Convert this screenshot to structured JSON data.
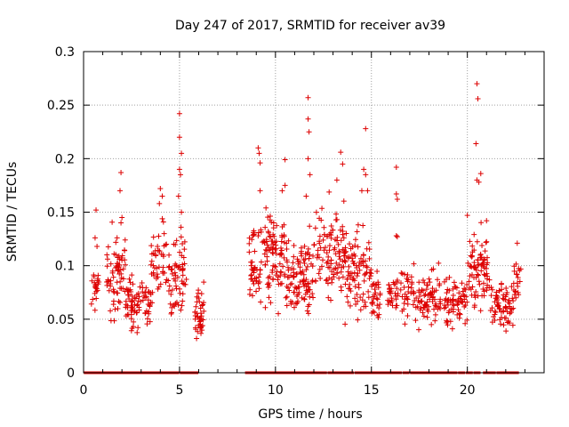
{
  "chart_data": {
    "type": "scatter",
    "title": "Day 247 of 2017, SRMTID for receiver av39",
    "xlabel": "GPS time / hours",
    "ylabel": "SRMTID / TECUs",
    "xlim": [
      0,
      24
    ],
    "ylim": [
      0,
      0.3
    ],
    "xticks": [
      0,
      5,
      10,
      15,
      20
    ],
    "xtick_labels": [
      "0",
      "5",
      "10",
      "15",
      "20"
    ],
    "yticks": [
      0,
      0.05,
      0.1,
      0.15,
      0.2,
      0.25,
      0.3
    ],
    "ytick_labels": [
      "0",
      "0.05",
      "0.1",
      "0.15",
      "0.2",
      "0.25",
      "0.3"
    ],
    "grid": true,
    "marker": "+",
    "series_color": "#dd0000",
    "grid_color": "#a0a0a0",
    "zero_x": [
      0.2,
      0.35,
      0.5,
      0.65,
      0.8,
      1.0,
      1.1,
      1.25,
      1.4,
      1.6,
      1.9,
      2.0,
      2.2,
      2.4,
      2.5,
      2.8,
      3.0,
      3.3,
      3.5,
      3.7,
      3.9,
      4.1,
      4.4,
      4.6,
      4.8,
      5.2,
      5.4,
      5.6,
      5.8,
      8.6,
      8.8,
      9.0,
      9.2,
      9.4,
      9.7,
      9.9,
      10.2,
      10.4,
      10.6,
      10.9,
      11.2,
      11.4,
      11.7,
      12.0,
      12.3,
      12.5,
      12.9,
      13.1,
      13.3,
      13.6,
      13.9,
      14.3,
      14.6,
      14.9,
      15.1,
      15.4,
      15.7,
      15.9,
      16.1,
      16.4,
      16.8,
      17.2,
      17.5,
      17.8,
      18.1,
      18.4,
      18.7,
      19.0,
      19.3,
      19.7,
      20.1,
      20.5,
      21.0,
      21.3,
      21.7,
      22.0,
      22.3,
      22.5
    ],
    "clusters": [
      {
        "x": [
          0.4,
          0.8
        ],
        "y": [
          0.055,
          0.11
        ],
        "n": 22
      },
      {
        "x": [
          1.2,
          2.2
        ],
        "y": [
          0.035,
          0.145
        ],
        "n": 70
      },
      {
        "x": [
          2.2,
          3.5
        ],
        "y": [
          0.03,
          0.1
        ],
        "n": 80
      },
      {
        "x": [
          3.5,
          4.5
        ],
        "y": [
          0.04,
          0.16
        ],
        "n": 50
      },
      {
        "x": [
          4.5,
          5.4
        ],
        "y": [
          0.035,
          0.15
        ],
        "n": 55
      },
      {
        "x": [
          5.8,
          6.3
        ],
        "y": [
          0.02,
          0.09
        ],
        "n": 40
      },
      {
        "x": [
          8.6,
          9.4
        ],
        "y": [
          0.05,
          0.16
        ],
        "n": 50
      },
      {
        "x": [
          9.4,
          10.5
        ],
        "y": [
          0.05,
          0.17
        ],
        "n": 90
      },
      {
        "x": [
          10.5,
          12.0
        ],
        "y": [
          0.03,
          0.14
        ],
        "n": 110
      },
      {
        "x": [
          12.0,
          13.6
        ],
        "y": [
          0.05,
          0.18
        ],
        "n": 100
      },
      {
        "x": [
          13.6,
          15.0
        ],
        "y": [
          0.04,
          0.15
        ],
        "n": 95
      },
      {
        "x": [
          15.0,
          15.5
        ],
        "y": [
          0.04,
          0.1
        ],
        "n": 30
      },
      {
        "x": [
          15.8,
          16.4
        ],
        "y": [
          0.05,
          0.1
        ],
        "n": 30
      },
      {
        "x": [
          16.5,
          18.6
        ],
        "y": [
          0.035,
          0.11
        ],
        "n": 110
      },
      {
        "x": [
          18.8,
          20.0
        ],
        "y": [
          0.03,
          0.1
        ],
        "n": 70
      },
      {
        "x": [
          20.0,
          21.2
        ],
        "y": [
          0.04,
          0.15
        ],
        "n": 80
      },
      {
        "x": [
          21.2,
          22.4
        ],
        "y": [
          0.03,
          0.1
        ],
        "n": 70
      },
      {
        "x": [
          22.4,
          22.8
        ],
        "y": [
          0.05,
          0.12
        ],
        "n": 20
      }
    ],
    "peaks": [
      {
        "x": 0.65,
        "y": 0.152
      },
      {
        "x": 0.6,
        "y": 0.126
      },
      {
        "x": 0.7,
        "y": 0.118
      },
      {
        "x": 1.95,
        "y": 0.187
      },
      {
        "x": 1.9,
        "y": 0.17
      },
      {
        "x": 2.0,
        "y": 0.145
      },
      {
        "x": 1.95,
        "y": 0.14
      },
      {
        "x": 4.0,
        "y": 0.172
      },
      {
        "x": 4.1,
        "y": 0.165
      },
      {
        "x": 3.95,
        "y": 0.158
      },
      {
        "x": 4.2,
        "y": 0.13
      },
      {
        "x": 5.0,
        "y": 0.242
      },
      {
        "x": 5.0,
        "y": 0.22
      },
      {
        "x": 5.1,
        "y": 0.205
      },
      {
        "x": 5.0,
        "y": 0.19
      },
      {
        "x": 5.05,
        "y": 0.185
      },
      {
        "x": 4.95,
        "y": 0.165
      },
      {
        "x": 5.1,
        "y": 0.15
      },
      {
        "x": 9.1,
        "y": 0.21
      },
      {
        "x": 9.15,
        "y": 0.205
      },
      {
        "x": 9.2,
        "y": 0.196
      },
      {
        "x": 9.2,
        "y": 0.17
      },
      {
        "x": 10.5,
        "y": 0.199
      },
      {
        "x": 10.35,
        "y": 0.17
      },
      {
        "x": 10.5,
        "y": 0.175
      },
      {
        "x": 11.7,
        "y": 0.257
      },
      {
        "x": 11.7,
        "y": 0.237
      },
      {
        "x": 11.75,
        "y": 0.225
      },
      {
        "x": 11.7,
        "y": 0.2
      },
      {
        "x": 11.8,
        "y": 0.185
      },
      {
        "x": 11.6,
        "y": 0.165
      },
      {
        "x": 13.4,
        "y": 0.206
      },
      {
        "x": 13.5,
        "y": 0.195
      },
      {
        "x": 13.2,
        "y": 0.18
      },
      {
        "x": 14.7,
        "y": 0.228
      },
      {
        "x": 14.6,
        "y": 0.19
      },
      {
        "x": 14.7,
        "y": 0.185
      },
      {
        "x": 14.8,
        "y": 0.17
      },
      {
        "x": 14.5,
        "y": 0.17
      },
      {
        "x": 16.3,
        "y": 0.192
      },
      {
        "x": 16.3,
        "y": 0.167
      },
      {
        "x": 16.35,
        "y": 0.162
      },
      {
        "x": 16.3,
        "y": 0.128
      },
      {
        "x": 16.35,
        "y": 0.127
      },
      {
        "x": 20.5,
        "y": 0.27
      },
      {
        "x": 20.55,
        "y": 0.256
      },
      {
        "x": 20.45,
        "y": 0.214
      },
      {
        "x": 20.7,
        "y": 0.186
      },
      {
        "x": 20.5,
        "y": 0.18
      },
      {
        "x": 20.6,
        "y": 0.178
      },
      {
        "x": 20.0,
        "y": 0.147
      },
      {
        "x": 21.0,
        "y": 0.142
      },
      {
        "x": 22.6,
        "y": 0.121
      }
    ]
  }
}
